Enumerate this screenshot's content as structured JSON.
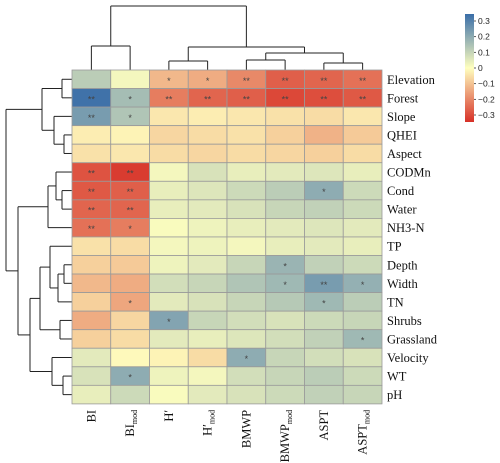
{
  "chart_data": {
    "type": "heatmap",
    "title": "",
    "xlabel": "",
    "ylabel": "",
    "columns": [
      {
        "base": "BI",
        "sub": ""
      },
      {
        "base": "BI",
        "sub": "mod"
      },
      {
        "base": "H′",
        "sub": ""
      },
      {
        "base": "H′",
        "sub": "mod"
      },
      {
        "base": "BMWP",
        "sub": ""
      },
      {
        "base": "BMWP",
        "sub": "mod"
      },
      {
        "base": "ASPT",
        "sub": ""
      },
      {
        "base": "ASPT",
        "sub": "mod"
      }
    ],
    "rows": [
      "Elevation",
      "Forest",
      "Slope",
      "QHEI",
      "Aspect",
      "CODMn",
      "Cond",
      "Water",
      "NH3-N",
      "TP",
      "Depth",
      "Width",
      "TN",
      "Shrubs",
      "Grassland",
      "Velocity",
      "WT",
      "pH"
    ],
    "values": [
      [
        0.12,
        0.02,
        -0.12,
        -0.14,
        -0.2,
        -0.27,
        -0.26,
        -0.24
      ],
      [
        0.34,
        0.16,
        -0.22,
        -0.26,
        -0.27,
        -0.31,
        -0.3,
        -0.28
      ],
      [
        0.24,
        0.14,
        -0.04,
        -0.03,
        -0.04,
        -0.05,
        -0.06,
        -0.04
      ],
      [
        -0.03,
        -0.02,
        -0.07,
        -0.06,
        -0.05,
        -0.08,
        -0.13,
        -0.09
      ],
      [
        -0.05,
        -0.04,
        -0.06,
        -0.07,
        -0.06,
        -0.07,
        -0.08,
        -0.06
      ],
      [
        -0.29,
        -0.33,
        0.02,
        0.07,
        0.04,
        0.05,
        0.06,
        0.04
      ],
      [
        -0.28,
        -0.27,
        0.04,
        0.06,
        0.09,
        0.12,
        0.2,
        0.09
      ],
      [
        -0.26,
        -0.26,
        0.04,
        0.05,
        0.07,
        0.1,
        0.11,
        0.09
      ],
      [
        -0.24,
        -0.22,
        0.01,
        0.03,
        0.04,
        0.05,
        0.06,
        0.05
      ],
      [
        -0.05,
        -0.06,
        0.02,
        0.03,
        0.02,
        0.04,
        0.05,
        0.04
      ],
      [
        -0.08,
        -0.09,
        0.03,
        0.05,
        0.1,
        0.18,
        0.11,
        0.09
      ],
      [
        -0.12,
        -0.14,
        0.08,
        0.1,
        0.14,
        0.17,
        0.24,
        0.19
      ],
      [
        -0.08,
        -0.15,
        0.05,
        0.07,
        0.1,
        0.13,
        0.17,
        0.12
      ],
      [
        -0.14,
        -0.07,
        0.22,
        0.1,
        0.08,
        0.07,
        0.09,
        0.1
      ],
      [
        -0.08,
        -0.06,
        0.05,
        0.04,
        0.06,
        0.08,
        0.11,
        0.17
      ],
      [
        0.05,
        -0.01,
        -0.02,
        -0.06,
        0.2,
        0.1,
        0.08,
        0.07
      ],
      [
        0.07,
        0.2,
        0.03,
        0.02,
        0.08,
        0.1,
        0.12,
        0.09
      ],
      [
        0.04,
        0.09,
        0.01,
        0.05,
        0.07,
        0.09,
        0.11,
        0.1
      ]
    ],
    "significance": [
      [
        "",
        "",
        "*",
        "*",
        "**",
        "**",
        "**",
        "**"
      ],
      [
        "**",
        "*",
        "**",
        "**",
        "**",
        "**",
        "**",
        "**"
      ],
      [
        "**",
        "*",
        "",
        "",
        "",
        "",
        "",
        ""
      ],
      [
        "",
        "",
        "",
        "",
        "",
        "",
        "",
        ""
      ],
      [
        "",
        "",
        "",
        "",
        "",
        "",
        "",
        ""
      ],
      [
        "**",
        "**",
        "",
        "",
        "",
        "",
        "",
        ""
      ],
      [
        "**",
        "**",
        "",
        "",
        "",
        "",
        "*",
        ""
      ],
      [
        "**",
        "**",
        "",
        "",
        "",
        "",
        "",
        ""
      ],
      [
        "**",
        "*",
        "",
        "",
        "",
        "",
        "",
        ""
      ],
      [
        "",
        "",
        "",
        "",
        "",
        "",
        "",
        ""
      ],
      [
        "",
        "",
        "",
        "",
        "",
        "*",
        "",
        ""
      ],
      [
        "",
        "",
        "",
        "",
        "",
        "*",
        "**",
        "*"
      ],
      [
        "",
        "*",
        "",
        "",
        "",
        "",
        "*",
        ""
      ],
      [
        "",
        "",
        "*",
        "",
        "",
        "",
        "",
        ""
      ],
      [
        "",
        "",
        "",
        "",
        "",
        "",
        "",
        "*"
      ],
      [
        "",
        "",
        "",
        "",
        "*",
        "",
        "",
        ""
      ],
      [
        "",
        "*",
        "",
        "",
        "",
        "",
        "",
        ""
      ],
      [
        "",
        "",
        "",
        "",
        "",
        "",
        "",
        ""
      ]
    ],
    "colorbar": {
      "ticks": [
        "0.3",
        "0.2",
        "0.1",
        "0",
        "−0.1",
        "−0.2",
        "−0.3"
      ],
      "range": [
        -0.35,
        0.35
      ],
      "colors": {
        "low": "#d73027",
        "mid": "#ffffbf",
        "high": "#3a6ea8"
      }
    },
    "row_dendrogram": "clustered",
    "column_dendrogram": "clustered",
    "legend_position": "top-right"
  }
}
